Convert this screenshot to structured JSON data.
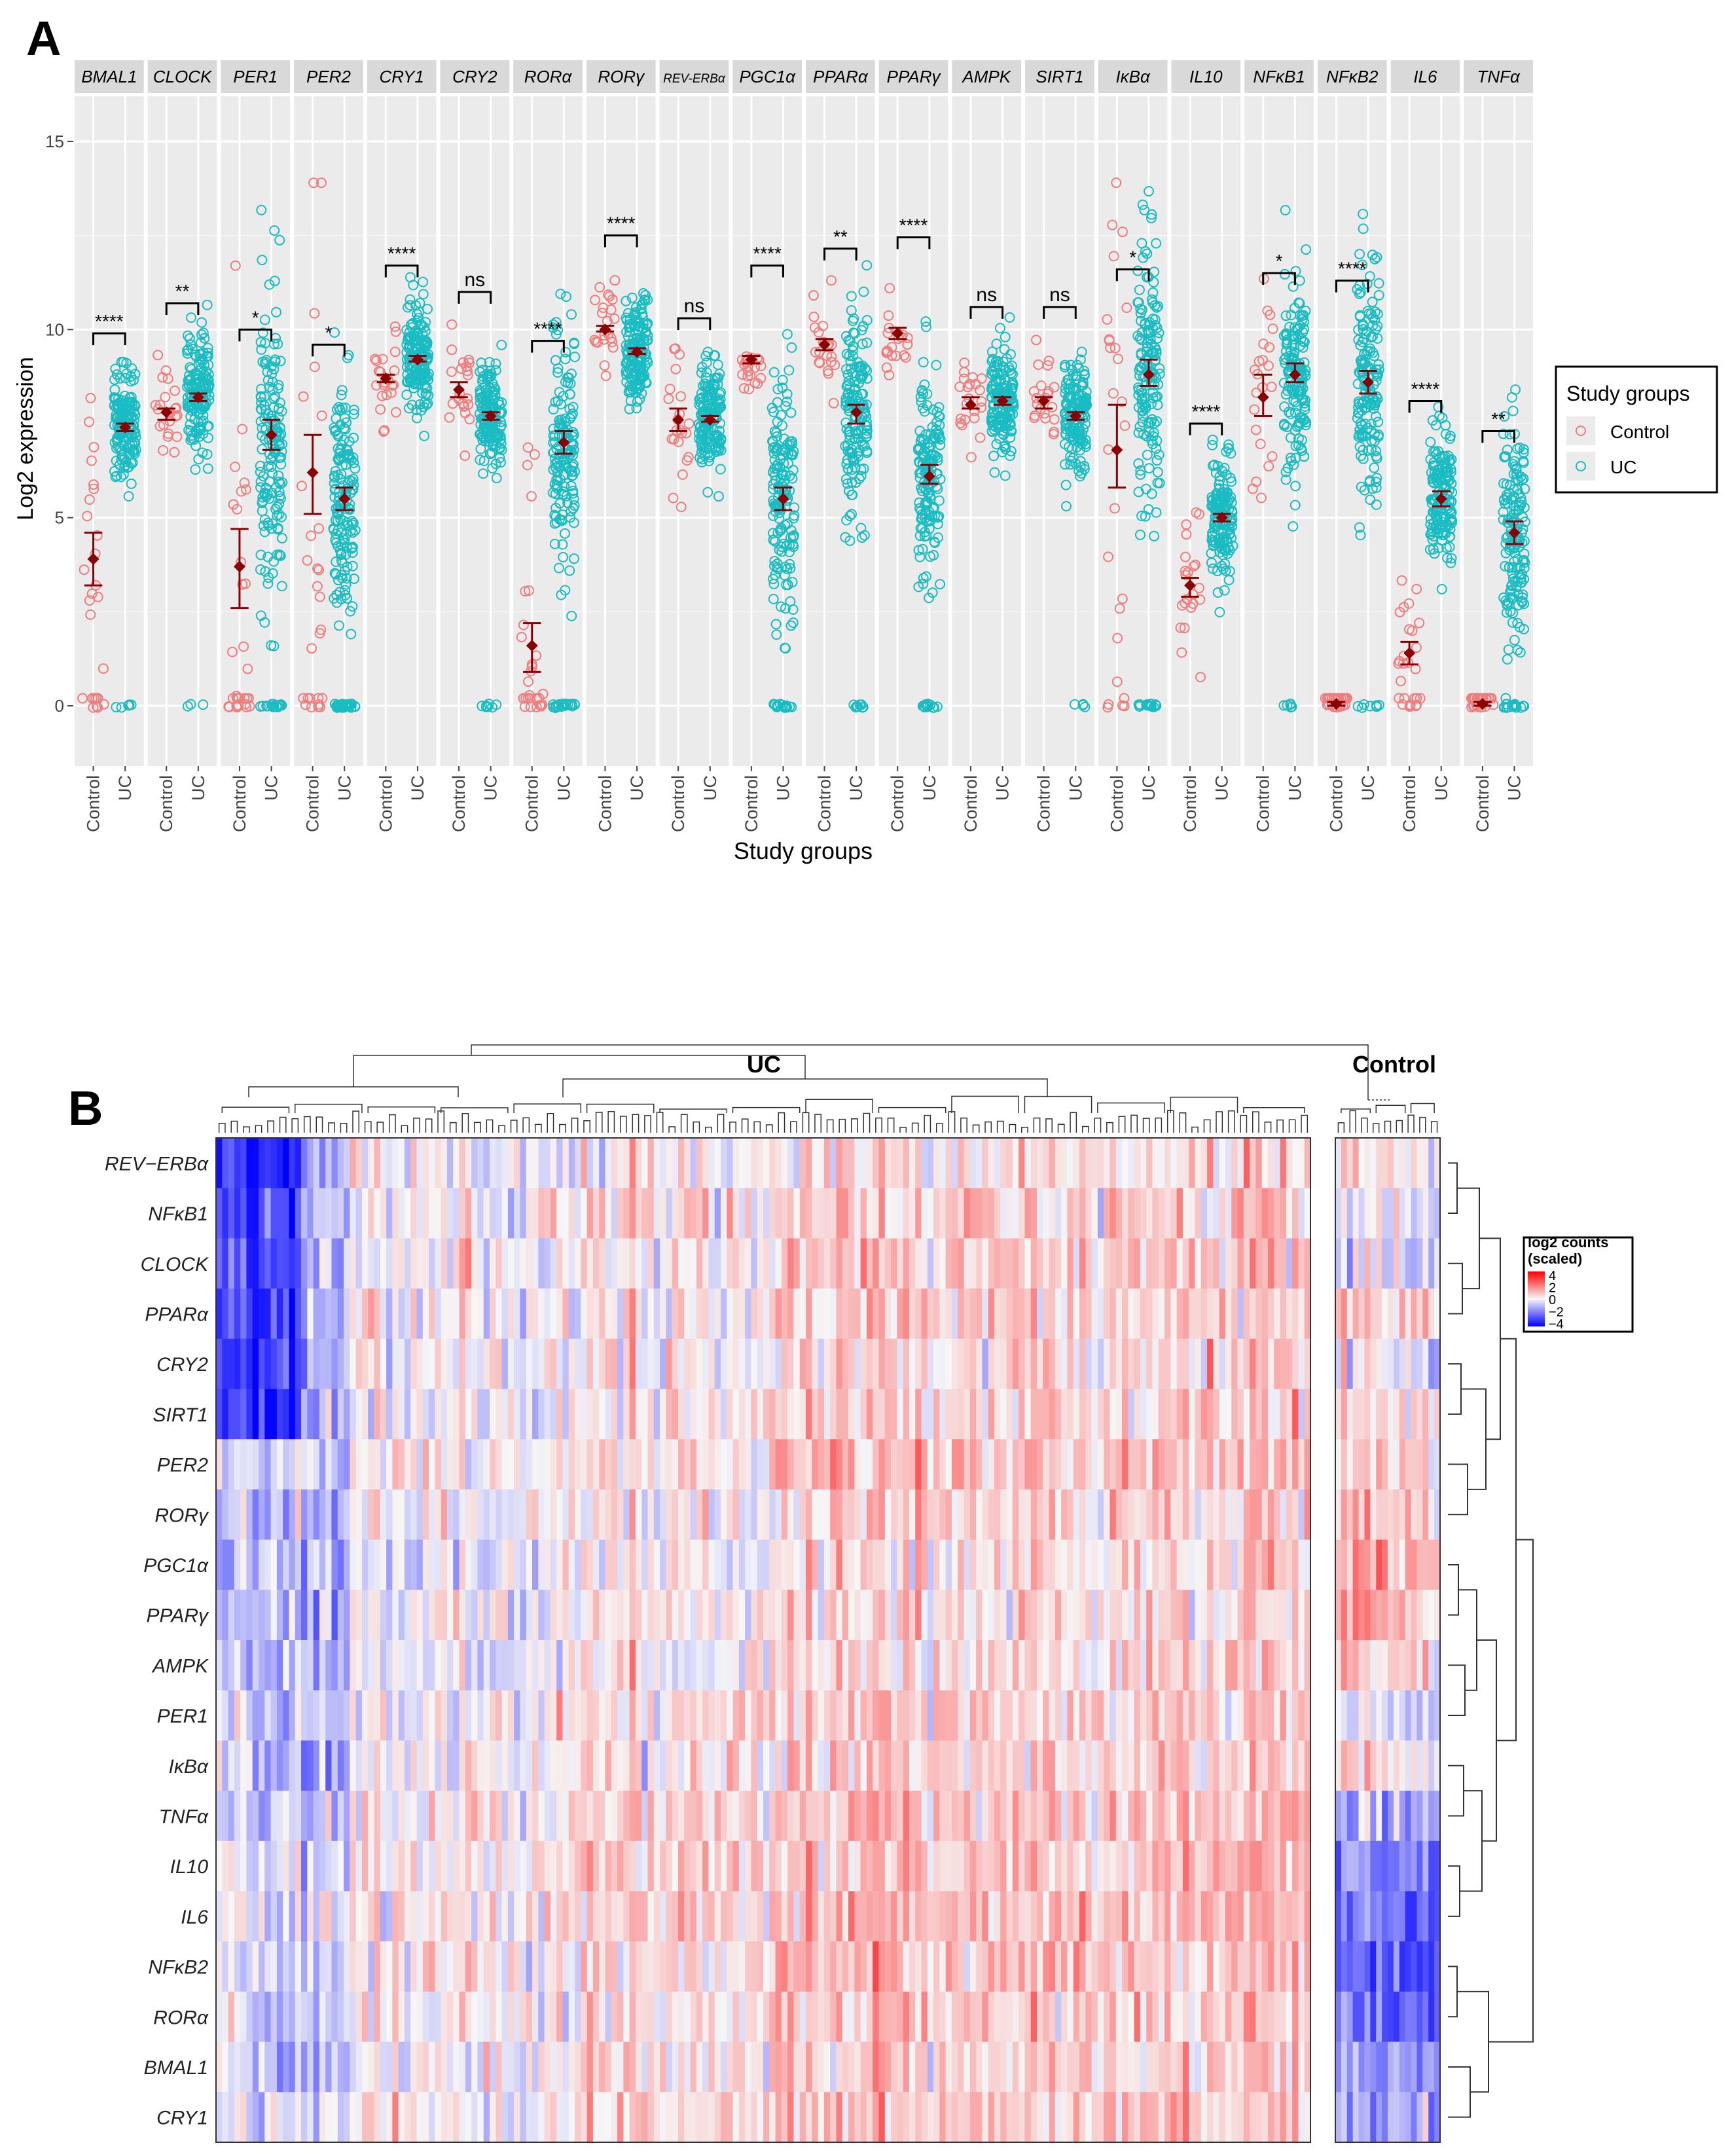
{
  "panel_a_label": "A",
  "panel_b_label": "B",
  "colors": {
    "control": "#f07c7c",
    "uc": "#19bcc2",
    "mean": "#8b0000",
    "panel_bg": "#ebebeb",
    "strip_bg": "#d9d9d9",
    "grid": "#ffffff",
    "heat_neg": "#0000ff",
    "heat_mid": "#f7f7f7",
    "heat_pos": "#ff0000"
  },
  "chart_data": [
    {
      "type": "scatter",
      "title": "",
      "xlabel": "Study groups",
      "ylabel": "Log2 expression",
      "ylim": [
        -1.6,
        16.2
      ],
      "y_ticks": [
        0,
        5,
        10,
        15
      ],
      "group_labels": [
        "Control",
        "UC"
      ],
      "legend": {
        "title": "Study groups",
        "entries": [
          "Control",
          "UC"
        ],
        "position": "right"
      },
      "facets": [
        {
          "gene": "BMAL1",
          "sig": "****",
          "control": {
            "mean": 3.9,
            "lo": 3.2,
            "hi": 4.6,
            "zeros": 4
          },
          "uc": {
            "mean": 7.4,
            "lo": 7.3,
            "hi": 7.5,
            "zeros": 5
          }
        },
        {
          "gene": "CLOCK",
          "sig": "**",
          "control": {
            "mean": 7.8,
            "lo": 7.6,
            "hi": 7.9,
            "zeros": 0
          },
          "uc": {
            "mean": 8.2,
            "lo": 8.1,
            "hi": 8.3,
            "zeros": 3
          }
        },
        {
          "gene": "PER1",
          "sig": "*",
          "control": {
            "mean": 3.7,
            "lo": 2.6,
            "hi": 4.7,
            "zeros": 8
          },
          "uc": {
            "mean": 7.2,
            "lo": 6.8,
            "hi": 7.6,
            "zeros": 18
          }
        },
        {
          "gene": "PER2",
          "sig": "*",
          "control": {
            "mean": 6.2,
            "lo": 5.1,
            "hi": 7.2,
            "zeros": 5
          },
          "uc": {
            "mean": 5.5,
            "lo": 5.2,
            "hi": 5.8,
            "zeros": 25
          }
        },
        {
          "gene": "CRY1",
          "sig": "****",
          "control": {
            "mean": 8.7,
            "lo": 8.6,
            "hi": 8.8,
            "zeros": 0
          },
          "uc": {
            "mean": 9.2,
            "lo": 9.15,
            "hi": 9.3,
            "zeros": 0
          }
        },
        {
          "gene": "CRY2",
          "sig": "ns",
          "control": {
            "mean": 8.4,
            "lo": 8.2,
            "hi": 8.6,
            "zeros": 0
          },
          "uc": {
            "mean": 7.7,
            "lo": 7.6,
            "hi": 7.8,
            "zeros": 7
          }
        },
        {
          "gene": "RORα",
          "sig": "****",
          "control": {
            "mean": 1.6,
            "lo": 0.9,
            "hi": 2.2,
            "zeros": 7
          },
          "uc": {
            "mean": 7.0,
            "lo": 6.7,
            "hi": 7.3,
            "zeros": 20
          }
        },
        {
          "gene": "RORγ",
          "sig": "****",
          "control": {
            "mean": 10.0,
            "lo": 9.95,
            "hi": 10.1,
            "zeros": 0
          },
          "uc": {
            "mean": 9.4,
            "lo": 9.35,
            "hi": 9.5,
            "zeros": 0
          }
        },
        {
          "gene": "REV-ERBα",
          "sig": "ns",
          "control": {
            "mean": 7.6,
            "lo": 7.3,
            "hi": 7.9,
            "zeros": 0
          },
          "uc": {
            "mean": 7.6,
            "lo": 7.55,
            "hi": 7.7,
            "zeros": 0
          }
        },
        {
          "gene": "PGC1α",
          "sig": "****",
          "control": {
            "mean": 9.2,
            "lo": 9.1,
            "hi": 9.3,
            "zeros": 0
          },
          "uc": {
            "mean": 5.5,
            "lo": 5.2,
            "hi": 5.8,
            "zeros": 15
          }
        },
        {
          "gene": "PPARα",
          "sig": "**",
          "control": {
            "mean": 9.6,
            "lo": 9.45,
            "hi": 9.75,
            "zeros": 0
          },
          "uc": {
            "mean": 7.8,
            "lo": 7.5,
            "hi": 8.0,
            "zeros": 8
          }
        },
        {
          "gene": "PPARγ",
          "sig": "****",
          "control": {
            "mean": 9.9,
            "lo": 9.75,
            "hi": 10.05,
            "zeros": 0
          },
          "uc": {
            "mean": 6.1,
            "lo": 5.9,
            "hi": 6.4,
            "zeros": 12
          }
        },
        {
          "gene": "AMPK",
          "sig": "ns",
          "control": {
            "mean": 8.0,
            "lo": 7.9,
            "hi": 8.2,
            "zeros": 0
          },
          "uc": {
            "mean": 8.1,
            "lo": 8.0,
            "hi": 8.2,
            "zeros": 0
          }
        },
        {
          "gene": "SIRT1",
          "sig": "ns",
          "control": {
            "mean": 8.1,
            "lo": 7.9,
            "hi": 8.2,
            "zeros": 0
          },
          "uc": {
            "mean": 7.7,
            "lo": 7.6,
            "hi": 7.8,
            "zeros": 4
          }
        },
        {
          "gene": "IκBα",
          "sig": "*",
          "control": {
            "mean": 6.8,
            "lo": 5.8,
            "hi": 8.0,
            "zeros": 4
          },
          "uc": {
            "mean": 8.8,
            "lo": 8.5,
            "hi": 9.2,
            "zeros": 14
          }
        },
        {
          "gene": "IL10",
          "sig": "****",
          "control": {
            "mean": 3.2,
            "lo": 2.9,
            "hi": 3.4,
            "zeros": 0
          },
          "uc": {
            "mean": 5.0,
            "lo": 4.9,
            "hi": 5.1,
            "zeros": 0
          }
        },
        {
          "gene": "NFκB1",
          "sig": "*",
          "control": {
            "mean": 8.2,
            "lo": 7.7,
            "hi": 8.8,
            "zeros": 0
          },
          "uc": {
            "mean": 8.8,
            "lo": 8.6,
            "hi": 9.1,
            "zeros": 6
          }
        },
        {
          "gene": "NFκB2",
          "sig": "****",
          "control": {
            "mean": 0.05,
            "lo": 0.0,
            "hi": 0.1,
            "zeros": 12
          },
          "uc": {
            "mean": 8.6,
            "lo": 8.3,
            "hi": 8.9,
            "zeros": 8
          }
        },
        {
          "gene": "IL6",
          "sig": "****",
          "control": {
            "mean": 1.4,
            "lo": 1.1,
            "hi": 1.7,
            "zeros": 6
          },
          "uc": {
            "mean": 5.5,
            "lo": 5.3,
            "hi": 5.7,
            "zeros": 0
          }
        },
        {
          "gene": "TNFα",
          "sig": "**",
          "control": {
            "mean": 0.05,
            "lo": 0.0,
            "hi": 0.1,
            "zeros": 10
          },
          "uc": {
            "mean": 4.6,
            "lo": 4.3,
            "hi": 4.9,
            "zeros": 18
          }
        }
      ]
    },
    {
      "type": "heatmap",
      "title": "",
      "column_groups": [
        {
          "name": "UC",
          "columns": 180
        },
        {
          "name": "Control",
          "columns": 18
        }
      ],
      "rows": [
        "REV−ERBα",
        "NFκB1",
        "CLOCK",
        "PPARα",
        "CRY2",
        "SIRT1",
        "PER2",
        "RORγ",
        "PGC1α",
        "PPARγ",
        "AMPK",
        "PER1",
        "IκBα",
        "TNFα",
        "IL10",
        "IL6",
        "NFκB2",
        "RORα",
        "BMAL1",
        "CRY1"
      ],
      "row_bias_uc": [
        0.2,
        0.4,
        0.5,
        0.4,
        0.3,
        0.3,
        0.6,
        0.3,
        0.2,
        0.2,
        0.2,
        0.4,
        0.4,
        0.6,
        0.6,
        0.7,
        0.6,
        0.5,
        0.4,
        0.6
      ],
      "row_bias_control": [
        0.2,
        -0.3,
        -0.4,
        0.8,
        -0.3,
        0.2,
        0.6,
        0.9,
        1.0,
        1.0,
        0.6,
        -0.5,
        0.2,
        -1.0,
        -1.8,
        -1.9,
        -2.2,
        -2.0,
        -1.5,
        -1.0
      ],
      "legend": {
        "title": "log2 counts\n(scaled)",
        "ticks": [
          4,
          2,
          0,
          -2,
          -4
        ],
        "range": [
          -4,
          4
        ]
      },
      "row_dendrogram": true,
      "column_dendrogram": true
    }
  ]
}
